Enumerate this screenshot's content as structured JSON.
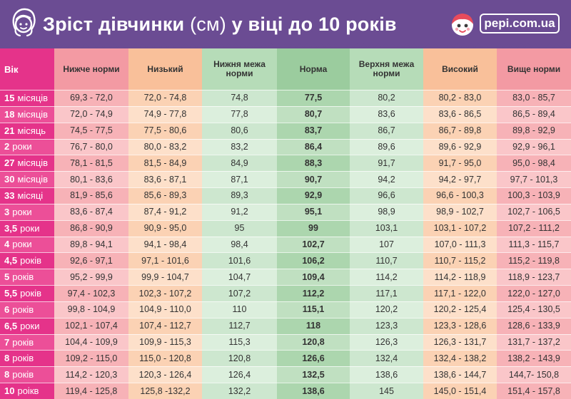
{
  "header": {
    "title_bold": "Зріст дівчинки",
    "title_unit": "(см)",
    "title_rest": "у віці до 10 років",
    "logo_text": "pepi.com.ua",
    "bg_color": "#6b4c93"
  },
  "columns": [
    {
      "label": "Вік",
      "color": "#e5338a",
      "color_alt": "#ec4f98",
      "head_color": "#e5338a"
    },
    {
      "label": "Нижче норми",
      "color": "#f7b2b7",
      "color_alt": "#fac6c9",
      "head_color": "#f39aa3"
    },
    {
      "label": "Низький",
      "color": "#fbd2b4",
      "color_alt": "#fde0ca",
      "head_color": "#f9c09a"
    },
    {
      "label": "Нижня межа норми",
      "color": "#cde7cf",
      "color_alt": "#dcefdd",
      "head_color": "#b6dcb8"
    },
    {
      "label": "Норма",
      "color": "#acd6ae",
      "color_alt": "#c0e0c1",
      "head_color": "#9bcc9e"
    },
    {
      "label": "Верхня межа норми",
      "color": "#cde7cf",
      "color_alt": "#dcefdd",
      "head_color": "#b6dcb8"
    },
    {
      "label": "Високий",
      "color": "#fbd2b4",
      "color_alt": "#fde0ca",
      "head_color": "#f9c09a"
    },
    {
      "label": "Вище норми",
      "color": "#f7b2b7",
      "color_alt": "#fac6c9",
      "head_color": "#f39aa3"
    }
  ],
  "rows": [
    {
      "age_num": "15",
      "age_unit": "місяців",
      "below": "69,3 - 72,0",
      "low": "72,0 - 74,8",
      "lower": "74,8",
      "norm": "77,5",
      "upper": "80,2",
      "high": "80,2 - 83,0",
      "above": "83,0 - 85,7"
    },
    {
      "age_num": "18",
      "age_unit": "місяців",
      "below": "72,0 - 74,9",
      "low": "74,9 - 77,8",
      "lower": "77,8",
      "norm": "80,7",
      "upper": "83,6",
      "high": "83,6 - 86,5",
      "above": "86,5 - 89,4"
    },
    {
      "age_num": "21",
      "age_unit": "місяць",
      "below": "74,5 - 77,5",
      "low": "77,5 - 80,6",
      "lower": "80,6",
      "norm": "83,7",
      "upper": "86,7",
      "high": "86,7 - 89,8",
      "above": "89,8 - 92,9"
    },
    {
      "age_num": "2",
      "age_unit": "роки",
      "below": "76,7 - 80,0",
      "low": "80,0 - 83,2",
      "lower": "83,2",
      "norm": "86,4",
      "upper": "89,6",
      "high": "89,6 - 92,9",
      "above": "92,9 - 96,1"
    },
    {
      "age_num": "27",
      "age_unit": "місяців",
      "below": "78,1 - 81,5",
      "low": "81,5 - 84,9",
      "lower": "84,9",
      "norm": "88,3",
      "upper": "91,7",
      "high": "91,7 - 95,0",
      "above": "95,0 - 98,4"
    },
    {
      "age_num": "30",
      "age_unit": "місяців",
      "below": "80,1 - 83,6",
      "low": "83,6 - 87,1",
      "lower": "87,1",
      "norm": "90,7",
      "upper": "94,2",
      "high": "94,2 - 97,7",
      "above": "97,7 - 101,3"
    },
    {
      "age_num": "33",
      "age_unit": "місяці",
      "below": "81,9 - 85,6",
      "low": "85,6 - 89,3",
      "lower": "89,3",
      "norm": "92,9",
      "upper": "96,6",
      "high": "96,6 - 100,3",
      "above": "100,3 - 103,9"
    },
    {
      "age_num": "3",
      "age_unit": "роки",
      "below": "83,6 - 87,4",
      "low": "87,4 - 91,2",
      "lower": "91,2",
      "norm": "95,1",
      "upper": "98,9",
      "high": "98,9 - 102,7",
      "above": "102,7 - 106,5"
    },
    {
      "age_num": "3,5",
      "age_unit": "роки",
      "below": "86,8 - 90,9",
      "low": "90,9 - 95,0",
      "lower": "95",
      "norm": "99",
      "upper": "103,1",
      "high": "103,1 - 107,2",
      "above": "107,2 - 111,2"
    },
    {
      "age_num": "4",
      "age_unit": "роки",
      "below": "89,8 - 94,1",
      "low": "94,1 - 98,4",
      "lower": "98,4",
      "norm": "102,7",
      "upper": "107",
      "high": "107,0 - 111,3",
      "above": "111,3 - 115,7"
    },
    {
      "age_num": "4,5",
      "age_unit": "років",
      "below": "92,6 - 97,1",
      "low": "97,1 - 101,6",
      "lower": "101,6",
      "norm": "106,2",
      "upper": "110,7",
      "high": "110,7 - 115,2",
      "above": "115,2 - 119,8"
    },
    {
      "age_num": "5",
      "age_unit": "років",
      "below": "95,2 - 99,9",
      "low": "99,9 - 104,7",
      "lower": "104,7",
      "norm": "109,4",
      "upper": "114,2",
      "high": "114,2 - 118,9",
      "above": "118,9 - 123,7"
    },
    {
      "age_num": "5,5",
      "age_unit": "років",
      "below": "97,4 - 102,3",
      "low": "102,3 - 107,2",
      "lower": "107,2",
      "norm": "112,2",
      "upper": "117,1",
      "high": "117,1 - 122,0",
      "above": "122,0 - 127,0"
    },
    {
      "age_num": "6",
      "age_unit": "років",
      "below": "99,8 - 104,9",
      "low": "104,9 - 110,0",
      "lower": "110",
      "norm": "115,1",
      "upper": "120,2",
      "high": "120,2 - 125,4",
      "above": "125,4 - 130,5"
    },
    {
      "age_num": "6,5",
      "age_unit": "роки",
      "below": "102,1 - 107,4",
      "low": "107,4 - 112,7",
      "lower": "112,7",
      "norm": "118",
      "upper": "123,3",
      "high": "123,3 - 128,6",
      "above": "128,6 - 133,9"
    },
    {
      "age_num": "7",
      "age_unit": "років",
      "below": "104,4 - 109,9",
      "low": "109,9 - 115,3",
      "lower": "115,3",
      "norm": "120,8",
      "upper": "126,3",
      "high": "126,3 - 131,7",
      "above": "131,7 - 137,2"
    },
    {
      "age_num": "8",
      "age_unit": "років",
      "below": "109,2 - 115,0",
      "low": "115,0 - 120,8",
      "lower": "120,8",
      "norm": "126,6",
      "upper": "132,4",
      "high": "132,4 - 138,2",
      "above": "138,2 - 143,9"
    },
    {
      "age_num": "8",
      "age_unit": "років",
      "below": "114,2 - 120,3",
      "low": "120,3 - 126,4",
      "lower": "126,4",
      "norm": "132,5",
      "upper": "138,6",
      "high": "138,6 - 144,7",
      "above": "144,7- 150,8"
    },
    {
      "age_num": "10",
      "age_unit": "роікв",
      "below": "119,4 - 125,8",
      "low": "125,8 -132,2",
      "lower": "132,2",
      "norm": "138,6",
      "upper": "145",
      "high": "145,0 - 151,4",
      "above": "151,4 - 157,8"
    }
  ]
}
